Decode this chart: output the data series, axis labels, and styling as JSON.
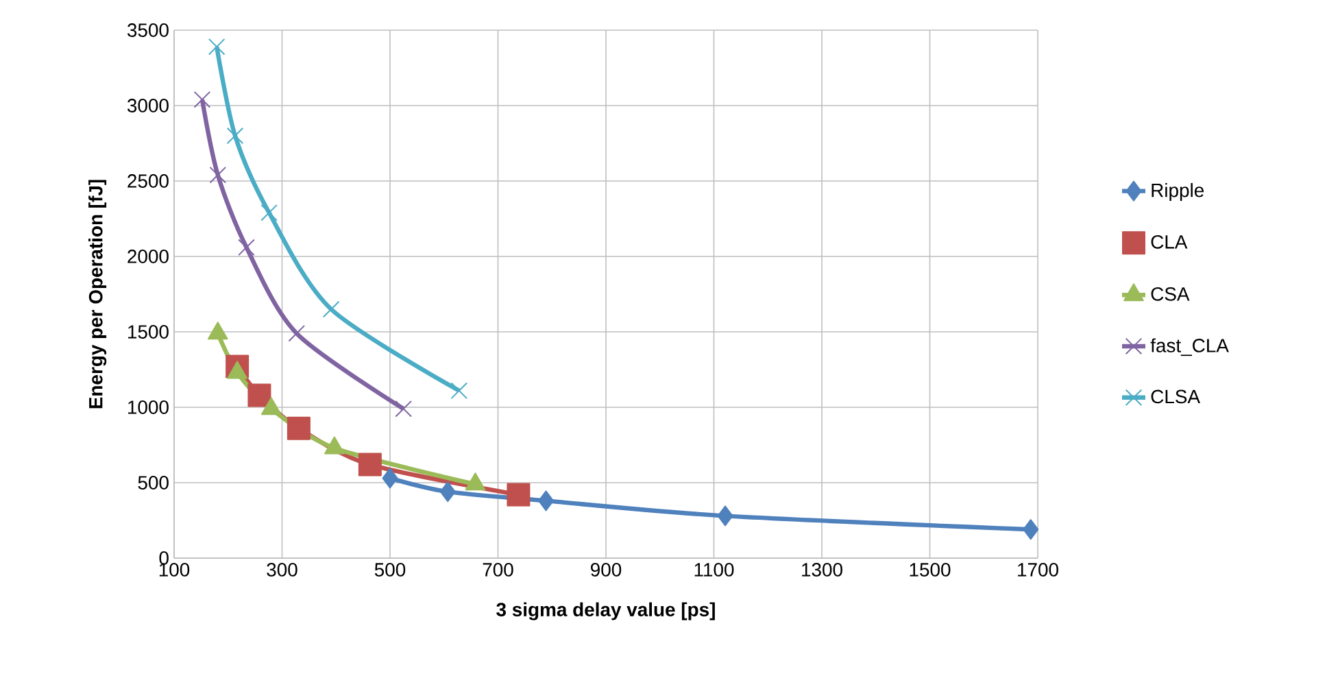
{
  "chart_data": {
    "type": "line",
    "xlabel": "3 sigma delay value [ps]",
    "ylabel": "Energy per  Operation [fJ]",
    "xlim": [
      100,
      1700
    ],
    "ylim": [
      0,
      3500
    ],
    "xticks": [
      100,
      300,
      500,
      700,
      900,
      1100,
      1300,
      1500,
      1700
    ],
    "yticks": [
      0,
      500,
      1000,
      1500,
      2000,
      2500,
      3000,
      3500
    ],
    "grid": true,
    "legend": "right",
    "line_style": "solid",
    "series": [
      {
        "name": "Ripple",
        "color": "#4f81bd",
        "marker": "diamond",
        "x": [
          500,
          607,
          789,
          1121,
          1687
        ],
        "values": [
          530,
          440,
          380,
          280,
          190
        ]
      },
      {
        "name": "CLA",
        "color": "#c0504d",
        "marker": "square",
        "x": [
          217,
          258,
          331,
          463,
          738
        ],
        "values": [
          1270,
          1080,
          860,
          620,
          420
        ]
      },
      {
        "name": "CSA",
        "color": "#9bbb59",
        "marker": "triangle",
        "x": [
          181,
          217,
          280,
          397,
          658
        ],
        "values": [
          1490,
          1230,
          990,
          730,
          490
        ]
      },
      {
        "name": "fast_CLA",
        "color": "#8064a2",
        "marker": "cross",
        "x": [
          152,
          181,
          234,
          327,
          525
        ],
        "values": [
          3040,
          2540,
          2060,
          1490,
          990
        ]
      },
      {
        "name": "CLSA",
        "color": "#4bacc6",
        "marker": "cross",
        "x": [
          179,
          213,
          276,
          391,
          628
        ],
        "values": [
          3390,
          2800,
          2290,
          1650,
          1110
        ]
      }
    ]
  }
}
